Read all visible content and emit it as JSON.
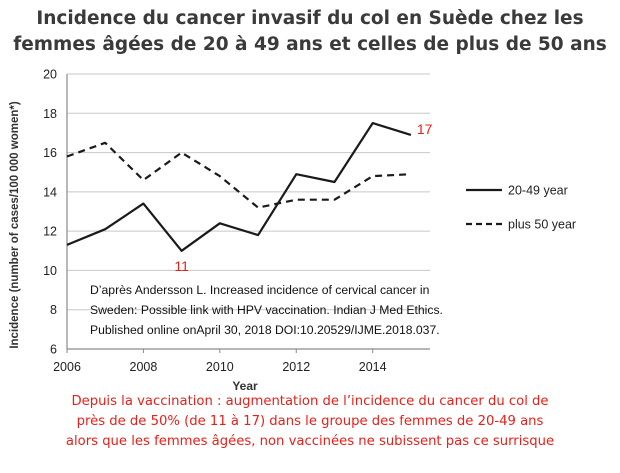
{
  "title": {
    "line1": "Incidence du cancer invasif du col en Suède chez les",
    "line2": "femmes âgées de 20 à 49 ans et celles de plus de 50 ans"
  },
  "source_note": {
    "line1": "D’après Andersson L. Increased incidence of cervical cancer in",
    "line2": "Sweden: Possible link with HPV vaccination. Indian J Med Ethics.",
    "line3": "Published online onApril 30, 2018 DOI:10.20529/IJME.2018.037."
  },
  "footnote": {
    "line1": "Depuis la vaccination : augmentation de l’incidence du cancer du col de",
    "line2": "près de de 50% (de 11 à 17) dans le groupe des femmes de 20-49 ans",
    "line3": "alors que les femmes âgées, non vaccinées ne subissent pas ce surrisque"
  },
  "colors": {
    "annotation": "#e8201a",
    "line": "#1a1a1a",
    "grid": "#c8c8c8",
    "axis": "#8a8a8a"
  },
  "chart_data": {
    "type": "line",
    "xlabel": "Year",
    "ylabel": "Incidence (number of cases/100 000 women*)",
    "xlim": [
      2006,
      2015.5
    ],
    "ylim": [
      6,
      20
    ],
    "x_ticks": [
      2006,
      2008,
      2010,
      2012,
      2014
    ],
    "y_ticks": [
      6,
      8,
      10,
      12,
      14,
      16,
      18,
      20
    ],
    "grid": "horizontal",
    "legend_position": "right",
    "series": [
      {
        "name": "20-49 year",
        "style": "solid",
        "x": [
          2006,
          2007,
          2008,
          2009,
          2010,
          2011,
          2012,
          2013,
          2014,
          2015
        ],
        "y": [
          11.3,
          12.1,
          13.4,
          11.0,
          12.4,
          11.8,
          14.9,
          14.5,
          17.5,
          16.9
        ]
      },
      {
        "name": "plus 50 year",
        "style": "dashed",
        "x": [
          2006,
          2007,
          2008,
          2009,
          2010,
          2011,
          2012,
          2013,
          2014,
          2015
        ],
        "y": [
          15.8,
          16.5,
          14.6,
          16.0,
          14.8,
          13.2,
          13.6,
          13.6,
          14.8,
          14.9
        ]
      }
    ],
    "annotations": [
      {
        "text": "11",
        "series": 0,
        "x": 2009
      },
      {
        "text": "17",
        "series": 0,
        "x": 2015
      }
    ]
  }
}
